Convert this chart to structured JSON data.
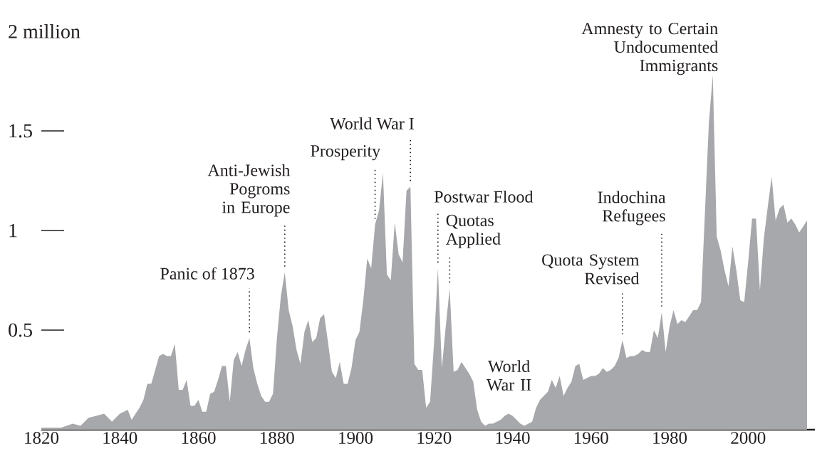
{
  "chart_data": {
    "type": "area",
    "color": "#a7a8ab",
    "x": [
      1820,
      1822,
      1825,
      1828,
      1830,
      1832,
      1834,
      1836,
      1838,
      1840,
      1842,
      1843,
      1844,
      1845,
      1846,
      1847,
      1848,
      1849,
      1850,
      1851,
      1852,
      1853,
      1854,
      1855,
      1856,
      1857,
      1858,
      1859,
      1860,
      1861,
      1862,
      1863,
      1864,
      1865,
      1866,
      1867,
      1868,
      1869,
      1870,
      1871,
      1872,
      1873,
      1874,
      1875,
      1876,
      1877,
      1878,
      1879,
      1880,
      1881,
      1882,
      1883,
      1884,
      1885,
      1886,
      1887,
      1888,
      1889,
      1890,
      1891,
      1892,
      1893,
      1894,
      1895,
      1896,
      1897,
      1898,
      1899,
      1900,
      1901,
      1902,
      1903,
      1904,
      1905,
      1906,
      1907,
      1908,
      1909,
      1910,
      1911,
      1912,
      1913,
      1914,
      1915,
      1916,
      1917,
      1918,
      1919,
      1920,
      1921,
      1922,
      1923,
      1924,
      1925,
      1926,
      1927,
      1928,
      1929,
      1930,
      1931,
      1932,
      1933,
      1934,
      1935,
      1936,
      1937,
      1938,
      1939,
      1940,
      1941,
      1942,
      1943,
      1944,
      1945,
      1946,
      1947,
      1948,
      1949,
      1950,
      1951,
      1952,
      1953,
      1954,
      1955,
      1956,
      1957,
      1958,
      1959,
      1960,
      1961,
      1962,
      1963,
      1964,
      1965,
      1966,
      1967,
      1968,
      1969,
      1970,
      1971,
      1972,
      1973,
      1974,
      1975,
      1976,
      1977,
      1978,
      1979,
      1980,
      1981,
      1982,
      1983,
      1984,
      1985,
      1986,
      1987,
      1988,
      1989,
      1990,
      1991,
      1992,
      1993,
      1994,
      1995,
      1996,
      1997,
      1998,
      1999,
      2000,
      2001,
      2002,
      2003,
      2004,
      2005,
      2006,
      2007,
      2008,
      2009,
      2010,
      2011,
      2012,
      2013,
      2014,
      2015
    ],
    "values": [
      0.01,
      0.01,
      0.01,
      0.03,
      0.02,
      0.06,
      0.07,
      0.08,
      0.04,
      0.08,
      0.1,
      0.05,
      0.08,
      0.11,
      0.15,
      0.23,
      0.23,
      0.3,
      0.37,
      0.38,
      0.37,
      0.37,
      0.43,
      0.2,
      0.2,
      0.25,
      0.12,
      0.12,
      0.15,
      0.09,
      0.09,
      0.18,
      0.19,
      0.25,
      0.32,
      0.32,
      0.14,
      0.35,
      0.39,
      0.32,
      0.4,
      0.46,
      0.31,
      0.23,
      0.17,
      0.14,
      0.14,
      0.18,
      0.46,
      0.67,
      0.79,
      0.6,
      0.52,
      0.4,
      0.33,
      0.49,
      0.55,
      0.44,
      0.46,
      0.56,
      0.58,
      0.44,
      0.29,
      0.26,
      0.34,
      0.23,
      0.23,
      0.31,
      0.45,
      0.49,
      0.65,
      0.86,
      0.81,
      1.03,
      1.1,
      1.29,
      0.78,
      0.75,
      1.04,
      0.88,
      0.84,
      1.2,
      1.22,
      0.33,
      0.3,
      0.3,
      0.11,
      0.14,
      0.43,
      0.81,
      0.31,
      0.52,
      0.71,
      0.29,
      0.3,
      0.34,
      0.31,
      0.28,
      0.24,
      0.1,
      0.04,
      0.02,
      0.03,
      0.03,
      0.04,
      0.05,
      0.07,
      0.08,
      0.07,
      0.05,
      0.03,
      0.02,
      0.03,
      0.04,
      0.11,
      0.15,
      0.17,
      0.19,
      0.25,
      0.21,
      0.27,
      0.17,
      0.21,
      0.24,
      0.32,
      0.33,
      0.25,
      0.26,
      0.27,
      0.27,
      0.28,
      0.31,
      0.29,
      0.3,
      0.32,
      0.36,
      0.45,
      0.36,
      0.37,
      0.37,
      0.38,
      0.4,
      0.39,
      0.39,
      0.5,
      0.46,
      0.59,
      0.39,
      0.52,
      0.6,
      0.53,
      0.55,
      0.54,
      0.57,
      0.6,
      0.6,
      0.64,
      1.09,
      1.54,
      1.78,
      0.97,
      0.9,
      0.8,
      0.72,
      0.92,
      0.8,
      0.65,
      0.64,
      0.84,
      1.06,
      1.06,
      0.7,
      0.96,
      1.12,
      1.27,
      1.05,
      1.11,
      1.13,
      1.04,
      1.06,
      1.03,
      0.99,
      1.02,
      1.05
    ],
    "xlim": [
      1820,
      2017
    ],
    "ylim": [
      0,
      2
    ],
    "xticks": [
      1820,
      1840,
      1860,
      1880,
      1900,
      1920,
      1940,
      1960,
      1980,
      2000
    ],
    "yticks": [
      0.5,
      1,
      1.5,
      {
        "value": 2,
        "label": "2 million"
      }
    ],
    "annotations": [
      {
        "text": "Panic of 1873",
        "x": 1873,
        "y": 0.46
      },
      {
        "text": "Anti-Jewish Pogroms in Europe",
        "x": 1882,
        "y": 0.79
      },
      {
        "text": "Prosperity",
        "x": 1905,
        "y": 1.03
      },
      {
        "text": "World War I",
        "x": 1914,
        "y": 1.22
      },
      {
        "text": "Postwar Flood",
        "x": 1921,
        "y": 0.81
      },
      {
        "text": "Quotas Applied",
        "x": 1924,
        "y": 0.71
      },
      {
        "text": "World War II",
        "x": 1942,
        "y": 0.03
      },
      {
        "text": "Quota System Revised",
        "x": 1968,
        "y": 0.45
      },
      {
        "text": "Indochina Refugees",
        "x": 1978,
        "y": 0.59
      },
      {
        "text": "Amnesty to Certain Undocumented Immigrants",
        "x": 1991,
        "y": 1.78
      }
    ]
  }
}
